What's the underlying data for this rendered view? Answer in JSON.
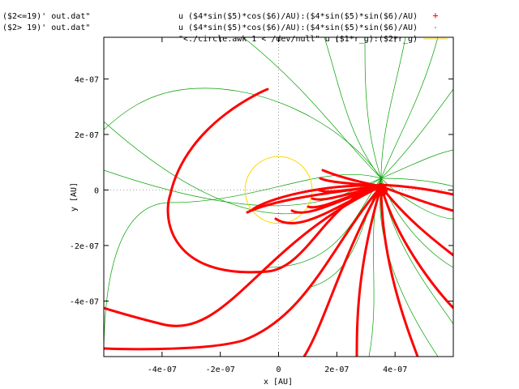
{
  "chart_data": {
    "type": "line",
    "title": "",
    "xlabel": "x [AU]",
    "ylabel": "y [AU]",
    "xlim": [
      -6e-07,
      6e-07
    ],
    "ylim": [
      -6e-07,
      5.5e-07
    ],
    "xticks": [
      {
        "value": -4e-07,
        "label": "-4e-07"
      },
      {
        "value": -2e-07,
        "label": "-2e-07"
      },
      {
        "value": 0,
        "label": "0"
      },
      {
        "value": 2e-07,
        "label": "2e-07"
      },
      {
        "value": 4e-07,
        "label": "4e-07"
      }
    ],
    "yticks": [
      {
        "value": 4e-07,
        "label": "4e-07"
      },
      {
        "value": 2e-07,
        "label": "2e-07"
      },
      {
        "value": 0,
        "label": "0"
      },
      {
        "value": -2e-07,
        "label": "-2e-07"
      },
      {
        "value": -4e-07,
        "label": "-4e-07"
      }
    ],
    "zero_axes": true,
    "legend": "top-right",
    "legend_left_fragments": [
      "($2<=19)' out.dat\"",
      "($2> 19)' out.dat\""
    ],
    "series": [
      {
        "name": "u ($4*sin($5)*cos($6)/AU):($4*sin($5)*sin($6)/AU)",
        "style": "points",
        "marker": "+",
        "color": "#ff0000"
      },
      {
        "name": "u ($4*sin($5)*cos($6)/AU):($4*sin($5)*sin($6)/AU)",
        "style": "dots",
        "marker": ".",
        "color": "#00a000"
      },
      {
        "name": "\"<./circle.awk 1 < /dev/null\" u ($1*r_g):($2*r_g)",
        "style": "line",
        "color": "#ffd700",
        "center": [
          0,
          0
        ],
        "radius": 1.15e-07
      }
    ],
    "source_point": [
      3.55e-07,
      1e-08
    ]
  }
}
